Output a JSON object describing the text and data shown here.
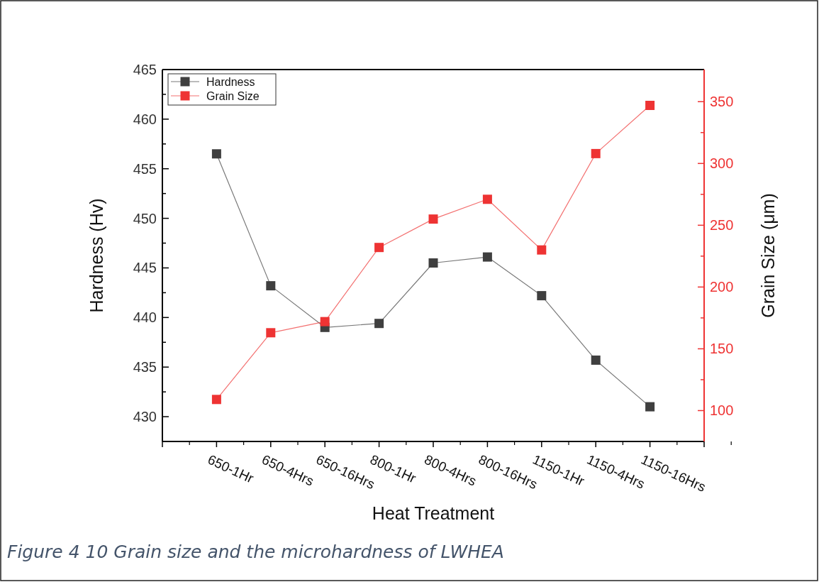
{
  "chart_data": {
    "type": "line",
    "xlabel": "Heat Treatment",
    "ylabel": "Hardness (Hv)",
    "y2label": "Grain Size (μm)",
    "annotations": [
      "Figure 4 10 Grain size and the microhardness of LWHEA"
    ],
    "categories": [
      "650-1Hr",
      "650-4Hrs",
      "650-16Hrs",
      "800-1Hr",
      "800-4Hrs",
      "800-16Hrs",
      "1150-1Hr",
      "1150-4Hrs",
      "1150-16Hrs"
    ],
    "series": [
      {
        "name": "Hardness",
        "color": "#3f3f3f",
        "values": [
          456.5,
          443.2,
          439.0,
          439.4,
          445.5,
          446.1,
          442.2,
          435.7,
          431.0
        ]
      },
      {
        "name": "Grain Size",
        "color": "#ee3333",
        "axis": "y2",
        "values": [
          109,
          163,
          172,
          232,
          255,
          271,
          230,
          308,
          347
        ]
      }
    ],
    "ylim": [
      427.5,
      465
    ],
    "yticks": [
      430,
      {
        "value": 432.5,
        "label": null
      },
      435,
      {
        "value": 437.5,
        "label": null
      },
      440,
      {
        "value": 442.5,
        "label": null
      },
      445,
      {
        "value": 447.5,
        "label": null
      },
      450,
      {
        "value": 452.5,
        "label": null
      },
      455,
      {
        "value": 457.5,
        "label": null
      },
      460,
      {
        "value": 462.5,
        "label": null
      },
      465
    ],
    "y2lim": [
      75,
      376
    ],
    "y2ticks": [
      100,
      {
        "value": 125,
        "label": null
      },
      150,
      {
        "value": 175,
        "label": null
      },
      200,
      {
        "value": 225,
        "label": null
      },
      250,
      {
        "value": 275,
        "label": null
      },
      300,
      {
        "value": 325,
        "label": null
      },
      350
    ],
    "marker": "square",
    "legend": "top left",
    "grid": false
  }
}
